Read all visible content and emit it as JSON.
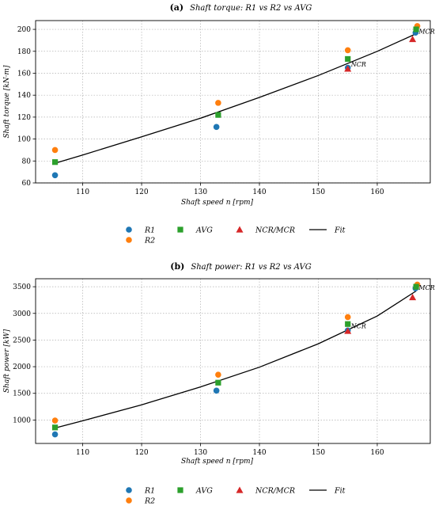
{
  "chart_data": [
    {
      "type": "scatter",
      "panel_letter": "(a)",
      "title": "Shaft torque: R1 vs R2 vs AVG",
      "xlabel": "Shaft speed n [rpm]",
      "ylabel": "Shaft torque [kN·m]",
      "xlim": [
        102,
        169
      ],
      "ylim": [
        60,
        208
      ],
      "xticks": [
        110,
        120,
        130,
        140,
        150,
        160
      ],
      "yticks": [
        60,
        80,
        100,
        120,
        140,
        160,
        180,
        200
      ],
      "grid": true,
      "legend_position": "bottom",
      "series": [
        {
          "name": "R1",
          "marker": "circle",
          "color": "#1f77b4",
          "points": [
            [
              105.3,
              67
            ],
            [
              132.7,
              111
            ],
            [
              155.0,
              165
            ],
            [
              166.5,
              197
            ]
          ]
        },
        {
          "name": "R2",
          "marker": "circle",
          "color": "#ff7f0e",
          "points": [
            [
              105.3,
              90
            ],
            [
              133.0,
              133
            ],
            [
              155.0,
              181
            ],
            [
              166.8,
              203
            ]
          ]
        },
        {
          "name": "AVG",
          "marker": "square",
          "color": "#2ca02c",
          "points": [
            [
              105.3,
              79
            ],
            [
              133.0,
              122
            ],
            [
              155.0,
              173
            ],
            [
              166.6,
              200
            ]
          ]
        },
        {
          "name": "NCR/MCR",
          "marker": "triangle",
          "color": "#d62728",
          "points": [
            [
              155.0,
              164
            ],
            [
              166.0,
              191
            ]
          ]
        },
        {
          "name": "Fit",
          "type": "line",
          "color": "#000000",
          "points": [
            [
              105.3,
              78
            ],
            [
              110,
              85.5
            ],
            [
              120,
              102
            ],
            [
              130,
              119
            ],
            [
              140,
              138
            ],
            [
              150,
              158
            ],
            [
              160,
              180
            ],
            [
              166.6,
              196
            ]
          ]
        }
      ],
      "annotations": [
        {
          "text": "NCR",
          "x": 155.0,
          "y": 164
        },
        {
          "text": "MCR",
          "x": 166.5,
          "y": 194
        }
      ]
    },
    {
      "type": "scatter",
      "panel_letter": "(b)",
      "title": "Shaft power: R1 vs R2 vs AVG",
      "xlabel": "Shaft speed n [rpm]",
      "ylabel": "Shaft power [kW]",
      "xlim": [
        102,
        169
      ],
      "ylim": [
        560,
        3650
      ],
      "xticks": [
        110,
        120,
        130,
        140,
        150,
        160
      ],
      "yticks": [
        1000,
        1500,
        2000,
        2500,
        3000,
        3500
      ],
      "grid": true,
      "legend_position": "bottom",
      "series": [
        {
          "name": "R1",
          "marker": "circle",
          "color": "#1f77b4",
          "points": [
            [
              105.3,
              730
            ],
            [
              132.7,
              1550
            ],
            [
              155.0,
              2680
            ],
            [
              166.5,
              3470
            ]
          ]
        },
        {
          "name": "R2",
          "marker": "circle",
          "color": "#ff7f0e",
          "points": [
            [
              105.3,
              990
            ],
            [
              133.0,
              1850
            ],
            [
              155.0,
              2930
            ],
            [
              166.8,
              3540
            ]
          ]
        },
        {
          "name": "AVG",
          "marker": "square",
          "color": "#2ca02c",
          "points": [
            [
              105.3,
              860
            ],
            [
              133.0,
              1700
            ],
            [
              155.0,
              2800
            ],
            [
              166.6,
              3500
            ]
          ]
        },
        {
          "name": "NCR/MCR",
          "marker": "triangle",
          "color": "#d62728",
          "points": [
            [
              155.0,
              2670
            ],
            [
              166.0,
              3300
            ]
          ]
        },
        {
          "name": "Fit",
          "type": "line",
          "color": "#000000",
          "points": [
            [
              105.3,
              850
            ],
            [
              110,
              985
            ],
            [
              120,
              1285
            ],
            [
              130,
              1620
            ],
            [
              140,
              1990
            ],
            [
              150,
              2430
            ],
            [
              160,
              2950
            ],
            [
              166.6,
              3420
            ]
          ]
        }
      ],
      "annotations": [
        {
          "text": "NCR",
          "x": 155.0,
          "y": 2680
        },
        {
          "text": "MCR",
          "x": 166.5,
          "y": 3400
        }
      ]
    }
  ]
}
